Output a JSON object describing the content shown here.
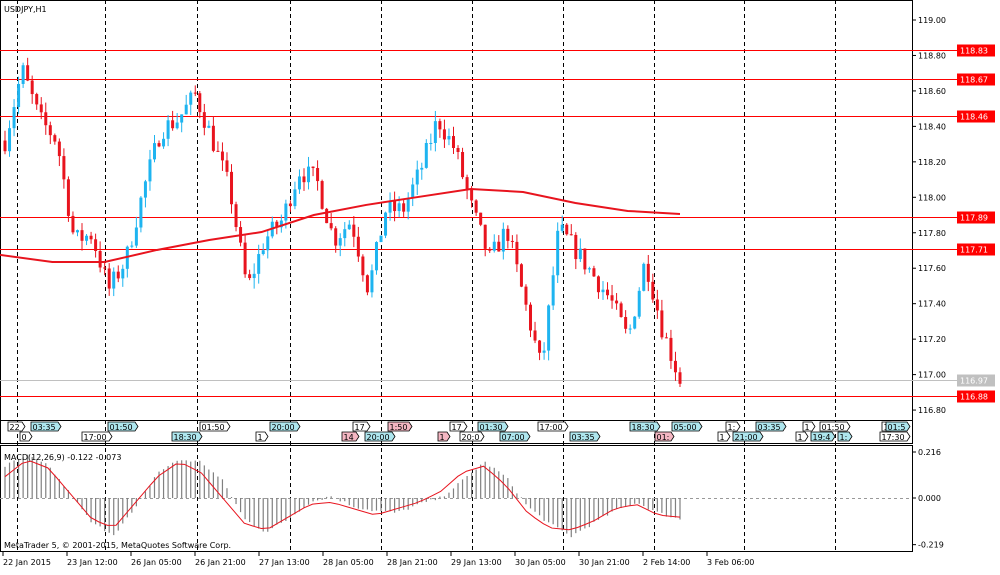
{
  "chart_data": {
    "type": "candlestick",
    "title": "USDJPY,H1",
    "symbol": "USDJPY",
    "timeframe": "H1",
    "ylim": [
      116.78,
      119.06
    ],
    "y_ticks": [
      "119.00",
      "118.80",
      "118.60",
      "118.40",
      "118.20",
      "118.00",
      "117.80",
      "117.60",
      "117.40",
      "117.20",
      "117.00",
      "116.80"
    ],
    "x_ticks": [
      "22 Jan 2015",
      "23 Jan 12:00",
      "26 Jan 05:00",
      "26 Jan 21:00",
      "27 Jan 13:00",
      "28 Jan 05:00",
      "28 Jan 21:00",
      "29 Jan 13:00",
      "30 Jan 05:00",
      "30 Jan 21:00",
      "2 Feb 14:00",
      "3 Feb 06:00"
    ],
    "candle_count": 150,
    "close_path": [
      118.32,
      118.72,
      118.44,
      118.32,
      117.76,
      117.79,
      117.48,
      117.65,
      118.04,
      118.38,
      118.44,
      118.58,
      118.32,
      118.04,
      117.48,
      117.76,
      117.87,
      118.15,
      118.1,
      117.76,
      117.87,
      117.48,
      117.93,
      117.93,
      118.15,
      118.44,
      118.27,
      117.93,
      117.65,
      117.82,
      117.42,
      117.03,
      117.82,
      117.7,
      117.56,
      117.42,
      117.2,
      117.65,
      117.25,
      116.97
    ],
    "moving_average": [
      117.675,
      117.635,
      117.635,
      117.703,
      117.759,
      117.804,
      117.9,
      117.957,
      118.002,
      118.047,
      118.03,
      117.968,
      117.923,
      117.906
    ],
    "levels": [
      118.83,
      118.67,
      118.46,
      117.89,
      117.71,
      116.88
    ],
    "level_labels": [
      "118.83",
      "118.67",
      "118.46",
      "117.89",
      "117.71",
      "116.88"
    ],
    "current_price": 116.97,
    "current_price_label": "116.97",
    "colors": {
      "bull": "#1eb4f0",
      "bear": "#e8141e",
      "ma": "#e8141e",
      "level": "#ff0000",
      "current": "#c0c0c0"
    },
    "macd": {
      "label": "MACD(12,26,9) -0.122 -0.073",
      "ylim": [
        -0.219,
        0.216
      ],
      "ticks": [
        "0.216",
        "0.000",
        "-0.219"
      ],
      "histogram_path": [
        0.15,
        0.2,
        0.15,
        0.02,
        -0.12,
        -0.17,
        -0.05,
        0.12,
        0.18,
        0.17,
        0.08,
        -0.1,
        -0.16,
        -0.1,
        -0.02,
        0.01,
        -0.04,
        -0.06,
        -0.07,
        -0.03,
        0.0,
        0.08,
        0.17,
        0.1,
        -0.04,
        -0.12,
        -0.18,
        -0.12,
        -0.06,
        -0.02,
        -0.07,
        -0.1
      ],
      "signal_path": [
        0.1,
        0.18,
        0.14,
        0.02,
        -0.1,
        -0.14,
        -0.02,
        0.1,
        0.17,
        0.12,
        0.0,
        -0.12,
        -0.15,
        -0.09,
        -0.03,
        -0.02,
        -0.05,
        -0.08,
        -0.05,
        -0.02,
        0.03,
        0.12,
        0.15,
        0.06,
        -0.07,
        -0.14,
        -0.15,
        -0.11,
        -0.05,
        -0.03,
        -0.08,
        -0.09
      ]
    }
  },
  "events": [
    "22",
    "0",
    "03:35",
    "17:00",
    "01:50",
    "18:30",
    "01:50",
    "1",
    "20:00",
    "14",
    "17",
    "20:00",
    "1:50",
    "1",
    "17",
    "20:0",
    "01:30",
    "07:00",
    "17:00",
    "03:35",
    "18:30",
    "01:",
    "05:00",
    "1",
    "1:",
    "21:00",
    "03:35",
    "1",
    "1",
    "19:4",
    "01:50",
    "1:",
    "1",
    "17:30",
    "01:5"
  ],
  "footer": "MetaTrader 5, © 2001-2015, MetaQuotes Software Corp."
}
